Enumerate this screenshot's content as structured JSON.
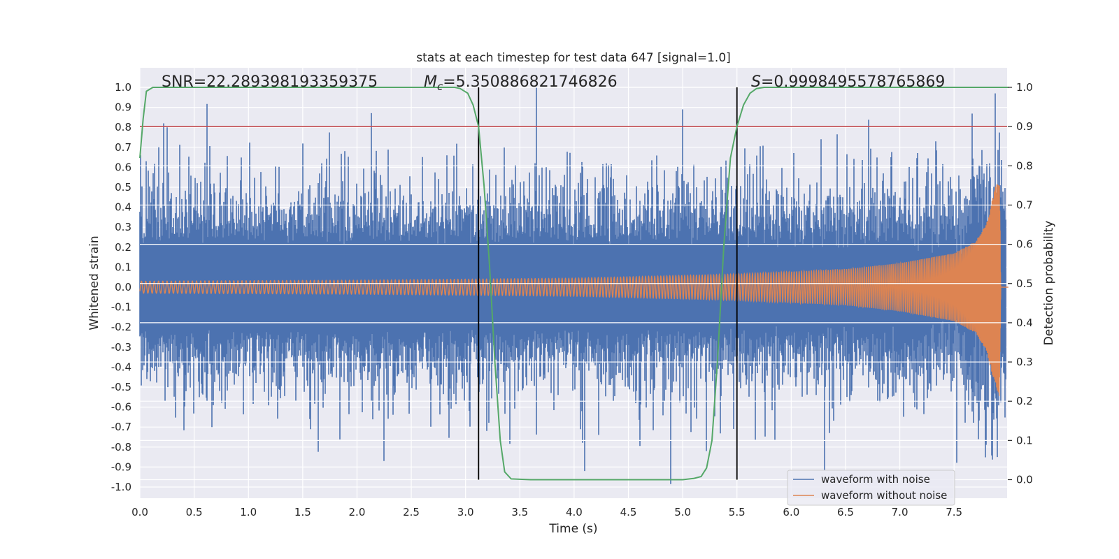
{
  "chart_data": {
    "type": "line",
    "title": "stats at each timestep for test data 647 [signal=1.0]",
    "xlabel": "Time (s)",
    "ylabel_left": "Whitened strain",
    "ylabel_right": "Detection probability",
    "xlim": [
      0.0,
      8.0
    ],
    "ylim_left": [
      -1.0,
      1.0
    ],
    "ylim_right": [
      0.0,
      1.0
    ],
    "x_ticks": [
      "0.0",
      "0.5",
      "1.0",
      "1.5",
      "2.0",
      "2.5",
      "3.0",
      "3.5",
      "4.0",
      "4.5",
      "5.0",
      "5.5",
      "6.0",
      "6.5",
      "7.0",
      "7.5"
    ],
    "y_left_ticks": [
      "1.0",
      "0.9",
      "0.8",
      "0.7",
      "0.6",
      "0.5",
      "0.4",
      "0.3",
      "0.2",
      "0.1",
      "0.0",
      "-0.1",
      "-0.2",
      "-0.3",
      "-0.4",
      "-0.5",
      "-0.6",
      "-0.7",
      "-0.8",
      "-0.9",
      "-1.0"
    ],
    "y_right_ticks": [
      "1.0",
      "0.9",
      "0.8",
      "0.7",
      "0.6",
      "0.5",
      "0.4",
      "0.3",
      "0.2",
      "0.1",
      "0.0"
    ],
    "annotations": {
      "snr": "SNR=22.289398193359375",
      "mc_prefix": "M",
      "mc_sub": "c",
      "mc_value": "=5.350886821746826",
      "s_prefix": "S",
      "s_value": "=0.9998495578765869"
    },
    "threshold": {
      "axis": "right",
      "value": 0.9,
      "color": "#c44e52"
    },
    "vertical_markers": {
      "values": [
        3.12,
        5.5
      ],
      "color": "#000000"
    },
    "series": [
      {
        "name": "waveform with noise",
        "axis": "left",
        "color": "#4c72b0",
        "style": "dense noisy strain, envelope approx [-0.45, 0.45] with spikes to ±1.0",
        "peaks": [
          {
            "x": 0.22,
            "y": 0.82
          },
          {
            "x": 0.25,
            "y": 0.8
          },
          {
            "x": 2.25,
            "y": -0.87
          },
          {
            "x": 3.65,
            "y": 1.0
          },
          {
            "x": 4.1,
            "y": -0.92
          },
          {
            "x": 5.0,
            "y": 0.89
          },
          {
            "x": 5.22,
            "y": -0.82
          },
          {
            "x": 7.88,
            "y": 0.97
          },
          {
            "x": 7.9,
            "y": -0.85
          }
        ]
      },
      {
        "name": "waveform without noise",
        "axis": "left",
        "color": "#dd8452",
        "style": "chirp: amplitude grows from 0.03 at t=0 to ~0.6 near merger at t=7.9",
        "amplitude": [
          [
            0.0,
            0.03
          ],
          [
            2.0,
            0.035
          ],
          [
            4.0,
            0.045
          ],
          [
            5.5,
            0.065
          ],
          [
            6.5,
            0.09
          ],
          [
            7.0,
            0.12
          ],
          [
            7.5,
            0.17
          ],
          [
            7.7,
            0.23
          ],
          [
            7.8,
            0.32
          ],
          [
            7.88,
            0.5
          ],
          [
            7.92,
            0.55
          ],
          [
            7.93,
            0.0
          ]
        ]
      },
      {
        "name": "detection probability",
        "axis": "right",
        "color": "#55a868",
        "points": [
          [
            0.0,
            0.82
          ],
          [
            0.03,
            0.92
          ],
          [
            0.06,
            0.99
          ],
          [
            0.12,
            1.0
          ],
          [
            2.9,
            1.0
          ],
          [
            2.95,
            0.997
          ],
          [
            3.02,
            0.985
          ],
          [
            3.07,
            0.955
          ],
          [
            3.12,
            0.9
          ],
          [
            3.17,
            0.75
          ],
          [
            3.22,
            0.55
          ],
          [
            3.27,
            0.3
          ],
          [
            3.32,
            0.1
          ],
          [
            3.36,
            0.02
          ],
          [
            3.42,
            0.002
          ],
          [
            3.6,
            0.0
          ],
          [
            5.0,
            0.0
          ],
          [
            5.1,
            0.003
          ],
          [
            5.17,
            0.008
          ],
          [
            5.22,
            0.03
          ],
          [
            5.27,
            0.1
          ],
          [
            5.32,
            0.3
          ],
          [
            5.38,
            0.6
          ],
          [
            5.44,
            0.82
          ],
          [
            5.5,
            0.9
          ],
          [
            5.56,
            0.955
          ],
          [
            5.62,
            0.985
          ],
          [
            5.68,
            0.997
          ],
          [
            5.75,
            1.0
          ],
          [
            8.0,
            1.0
          ]
        ]
      }
    ],
    "legend": {
      "placement": "lower-right",
      "entries": [
        "waveform with noise",
        "waveform without noise"
      ]
    }
  }
}
